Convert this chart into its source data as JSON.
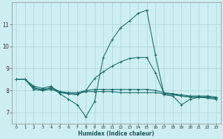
{
  "xlabel": "Humidex (Indice chaleur)",
  "background_color": "#cdeef2",
  "grid_color": "#aad4d8",
  "line_color": "#1a6b6b",
  "xlim": [
    -0.5,
    23.5
  ],
  "ylim": [
    6.5,
    12.0
  ],
  "yticks": [
    7,
    8,
    9,
    10,
    11
  ],
  "xticks": [
    0,
    1,
    2,
    3,
    4,
    5,
    6,
    7,
    8,
    9,
    10,
    11,
    12,
    13,
    14,
    15,
    16,
    17,
    18,
    19,
    20,
    21,
    22,
    23
  ],
  "lines": [
    {
      "x": [
        0,
        1,
        2,
        3,
        4,
        5,
        6,
        7,
        8,
        9,
        10,
        11,
        12,
        13,
        14,
        15,
        16,
        17,
        18,
        19,
        20,
        21,
        22,
        23
      ],
      "y": [
        8.5,
        8.5,
        8.2,
        8.1,
        8.2,
        7.85,
        7.6,
        7.35,
        6.8,
        7.5,
        9.5,
        10.3,
        10.85,
        11.15,
        11.5,
        11.65,
        9.6,
        7.8,
        7.75,
        7.35,
        7.6,
        7.7,
        7.65,
        7.6
      ]
    },
    {
      "x": [
        0,
        1,
        2,
        3,
        4,
        5,
        6,
        7,
        8,
        9,
        10,
        11,
        12,
        13,
        14,
        15,
        16,
        17,
        18,
        19,
        20,
        21,
        22,
        23
      ],
      "y": [
        8.5,
        8.5,
        8.15,
        8.0,
        8.15,
        7.95,
        7.85,
        7.8,
        8.0,
        8.55,
        8.85,
        9.1,
        9.3,
        9.45,
        9.5,
        9.5,
        8.8,
        7.85,
        7.85,
        7.75,
        7.7,
        7.7,
        7.7,
        7.65
      ]
    },
    {
      "x": [
        0,
        1,
        2,
        3,
        4,
        5,
        6,
        7,
        8,
        9,
        10,
        11,
        12,
        13,
        14,
        15,
        16,
        17,
        18,
        19,
        20,
        21,
        22,
        23
      ],
      "y": [
        8.5,
        8.5,
        8.05,
        8.0,
        8.05,
        7.9,
        7.85,
        7.85,
        7.95,
        7.95,
        7.95,
        7.95,
        7.9,
        7.9,
        7.9,
        7.9,
        7.9,
        7.85,
        7.8,
        7.75,
        7.7,
        7.7,
        7.7,
        7.65
      ]
    },
    {
      "x": [
        0,
        1,
        2,
        3,
        4,
        5,
        6,
        7,
        8,
        9,
        10,
        11,
        12,
        13,
        14,
        15,
        16,
        17,
        18,
        19,
        20,
        21,
        22,
        23
      ],
      "y": [
        8.5,
        8.5,
        8.1,
        8.05,
        8.1,
        7.95,
        7.9,
        7.9,
        8.0,
        8.05,
        8.05,
        8.05,
        8.05,
        8.05,
        8.05,
        8.05,
        8.0,
        7.9,
        7.85,
        7.8,
        7.75,
        7.75,
        7.75,
        7.7
      ]
    }
  ]
}
